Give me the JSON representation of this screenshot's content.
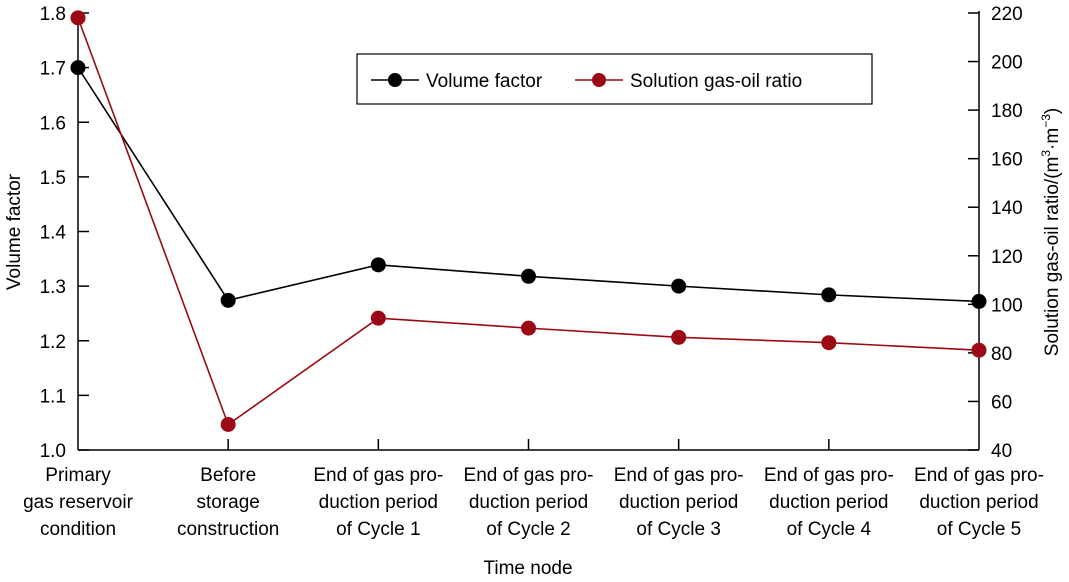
{
  "chart_data": {
    "type": "line",
    "title": "",
    "xlabel": "Time node",
    "ylabel": "Volume factor",
    "y2label": "Solution gas-oil ratio/(m³·m⁻³)",
    "y2label_parts": {
      "main": "Solution gas-oil ratio/(m",
      "sup1": "3",
      "mid": "·m",
      "sup2": "−3",
      "end": ")"
    },
    "categories": [
      [
        "Primary",
        "gas reservoir",
        "condition"
      ],
      [
        "Before",
        "storage",
        "construction"
      ],
      [
        "End of gas pro-",
        "duction period",
        "of Cycle 1"
      ],
      [
        "End of gas pro-",
        "duction period",
        "of Cycle 2"
      ],
      [
        "End of gas pro-",
        "duction period",
        "of Cycle 3"
      ],
      [
        "End of gas pro-",
        "duction period",
        "of Cycle 4"
      ],
      [
        "End of gas pro-",
        "duction period",
        "of Cycle 5"
      ]
    ],
    "ylim": [
      1.0,
      1.8
    ],
    "y2lim": [
      40,
      220
    ],
    "yticks": [
      "1.0",
      "1.1",
      "1.2",
      "1.3",
      "1.4",
      "1.5",
      "1.6",
      "1.7",
      "1.8"
    ],
    "y2ticks": [
      "40",
      "60",
      "80",
      "100",
      "120",
      "140",
      "160",
      "180",
      "200",
      "220"
    ],
    "grid": false,
    "legend_position": "top-center",
    "series": [
      {
        "name": "Volume factor",
        "axis": "left",
        "color": "#000000",
        "values": [
          1.7,
          1.274,
          1.339,
          1.318,
          1.3,
          1.284,
          1.272
        ]
      },
      {
        "name": "Solution gas-oil ratio",
        "axis": "right",
        "color": "#9b0a14",
        "values": [
          218,
          50.5,
          94.3,
          90.2,
          86.4,
          84.2,
          81.1
        ]
      }
    ]
  }
}
